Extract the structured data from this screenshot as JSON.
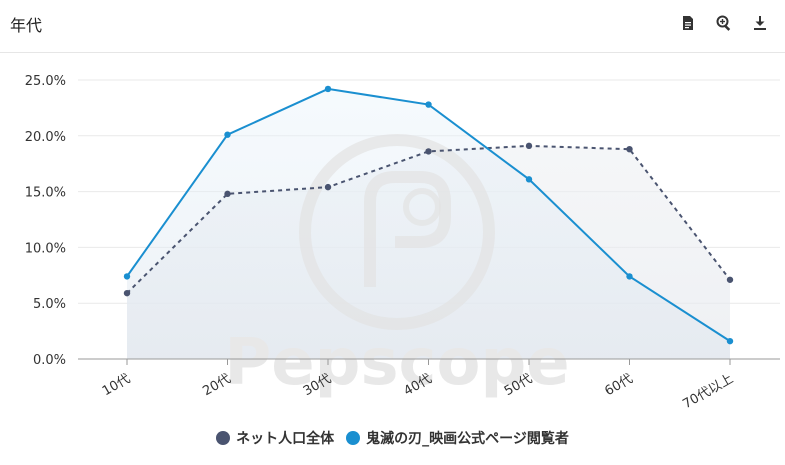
{
  "header": {
    "title": "年代"
  },
  "toolbar": {
    "icons": [
      "document-icon",
      "zoom-in-icon",
      "download-icon"
    ]
  },
  "watermark": {
    "text": "Pepscope"
  },
  "chart_data": {
    "type": "line",
    "title": "",
    "xlabel": "",
    "ylabel": "",
    "categories": [
      "10代",
      "20代",
      "30代",
      "40代",
      "50代",
      "60代",
      "70代以上"
    ],
    "ylim": [
      0,
      25
    ],
    "yticks": [
      "0.0%",
      "5.0%",
      "10.0%",
      "15.0%",
      "20.0%",
      "25.0%"
    ],
    "grid": "horizontal",
    "legend_position": "bottom",
    "series": [
      {
        "name": "ネット人口全体",
        "color": "#4a5470",
        "style": "dashed",
        "values": [
          5.9,
          14.8,
          15.4,
          18.6,
          19.1,
          18.8,
          7.1
        ]
      },
      {
        "name": "鬼滅の刃_映画公式ページ閲覧者",
        "color": "#1a8fd0",
        "style": "solid",
        "values": [
          7.4,
          20.1,
          24.2,
          22.8,
          16.1,
          7.4,
          1.6
        ]
      }
    ]
  }
}
